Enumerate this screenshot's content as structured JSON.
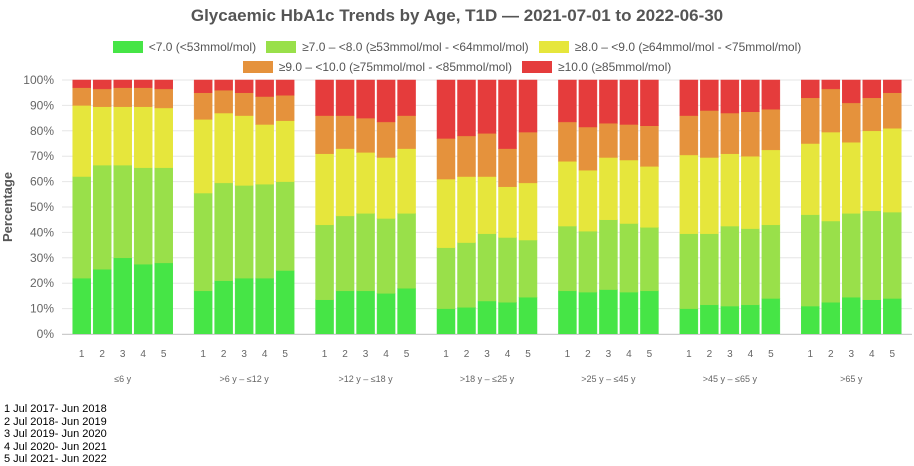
{
  "title": "Glycaemic HbA1c Trends by Age, T1D — 2021-07-01 to 2022-06-30",
  "legend": [
    {
      "label": "<7.0 (<53mmol/mol)",
      "color": "#46e546"
    },
    {
      "label": "≥7.0 – <8.0 (≥53mmol/mol - <64mmol/mol)",
      "color": "#99e04a"
    },
    {
      "label": "≥8.0 – <9.0 (≥64mmol/mol - <75mmol/mol)",
      "color": "#e6e63c"
    },
    {
      "label": "≥9.0 – <10.0 (≥75mmol/mol - <85mmol/mol)",
      "color": "#e5923c"
    },
    {
      "label": "≥10.0 (≥85mmol/mol)",
      "color": "#e53c3c"
    }
  ],
  "period_notes": [
    "1 Jul 2017- Jun 2018",
    "2 Jul 2018- Jun 2019",
    "3 Jul 2019- Jun 2020",
    "4 Jul 2020- Jun 2021",
    "5 Jul 2021- Jun 2022"
  ],
  "chart_data": {
    "type": "bar",
    "stacked": true,
    "ylabel": "Percentage",
    "ylim": [
      0,
      100
    ],
    "yticks": [
      "0%",
      "10%",
      "20%",
      "30%",
      "40%",
      "50%",
      "60%",
      "70%",
      "80%",
      "90%",
      "100%"
    ],
    "grid": true,
    "legend_position": "top",
    "sub_categories": [
      "1",
      "2",
      "3",
      "4",
      "5"
    ],
    "groups": [
      {
        "name": "≤6 y",
        "bars": [
          [
            22,
            40,
            28,
            7,
            3
          ],
          [
            25.5,
            41,
            23,
            7,
            3.5
          ],
          [
            30,
            36.5,
            23,
            7.5,
            3
          ],
          [
            27.5,
            38,
            24,
            7.5,
            3
          ],
          [
            28,
            37.5,
            23.5,
            7.5,
            3.5
          ]
        ]
      },
      {
        "name": ">6 y – ≤12 y",
        "bars": [
          [
            17,
            38.5,
            29,
            10.5,
            5
          ],
          [
            21,
            38.5,
            27.5,
            9,
            4
          ],
          [
            22,
            36.5,
            27.5,
            9,
            5
          ],
          [
            22,
            37,
            23.5,
            11,
            6.5
          ],
          [
            25,
            35,
            24,
            10,
            6
          ]
        ]
      },
      {
        "name": ">12 y – ≤18 y",
        "bars": [
          [
            13.5,
            29.5,
            28,
            15,
            14
          ],
          [
            17,
            29.5,
            26.5,
            13,
            14
          ],
          [
            17,
            30.5,
            24,
            13.5,
            15
          ],
          [
            16,
            29.5,
            24,
            14,
            16.5
          ],
          [
            18,
            29.5,
            25.5,
            13,
            14
          ]
        ]
      },
      {
        "name": ">18 y – ≤25 y",
        "bars": [
          [
            10,
            24,
            27,
            16,
            23
          ],
          [
            10.5,
            25.5,
            26,
            16,
            22
          ],
          [
            13,
            26.5,
            22.5,
            17,
            21
          ],
          [
            12.5,
            25.5,
            20,
            15,
            27
          ],
          [
            14.5,
            22.5,
            22.5,
            20,
            20.5
          ]
        ]
      },
      {
        "name": ">25 y – ≤45 y",
        "bars": [
          [
            17,
            25.5,
            25.5,
            15.5,
            16.5
          ],
          [
            16.5,
            24,
            24,
            17,
            18.5
          ],
          [
            17.5,
            27.5,
            24.5,
            13.5,
            17
          ],
          [
            16.5,
            27,
            25,
            14,
            17.5
          ],
          [
            17,
            25,
            24,
            16,
            18
          ]
        ]
      },
      {
        "name": ">45 y – ≤65 y",
        "bars": [
          [
            10,
            29.5,
            31,
            15.5,
            14
          ],
          [
            11.5,
            28,
            30,
            18.5,
            12
          ],
          [
            11,
            31.5,
            28.5,
            16,
            13
          ],
          [
            11.5,
            30,
            28.5,
            17.5,
            12.5
          ],
          [
            14,
            29,
            29.5,
            16,
            11.5
          ]
        ]
      },
      {
        "name": ">65 y",
        "bars": [
          [
            11,
            36,
            28,
            18,
            7
          ],
          [
            12.5,
            32,
            35,
            17,
            3.5
          ],
          [
            14.5,
            33,
            28,
            15.5,
            9
          ],
          [
            13.5,
            35,
            31.5,
            13,
            7
          ],
          [
            14,
            34,
            33,
            14,
            5
          ]
        ]
      }
    ]
  }
}
